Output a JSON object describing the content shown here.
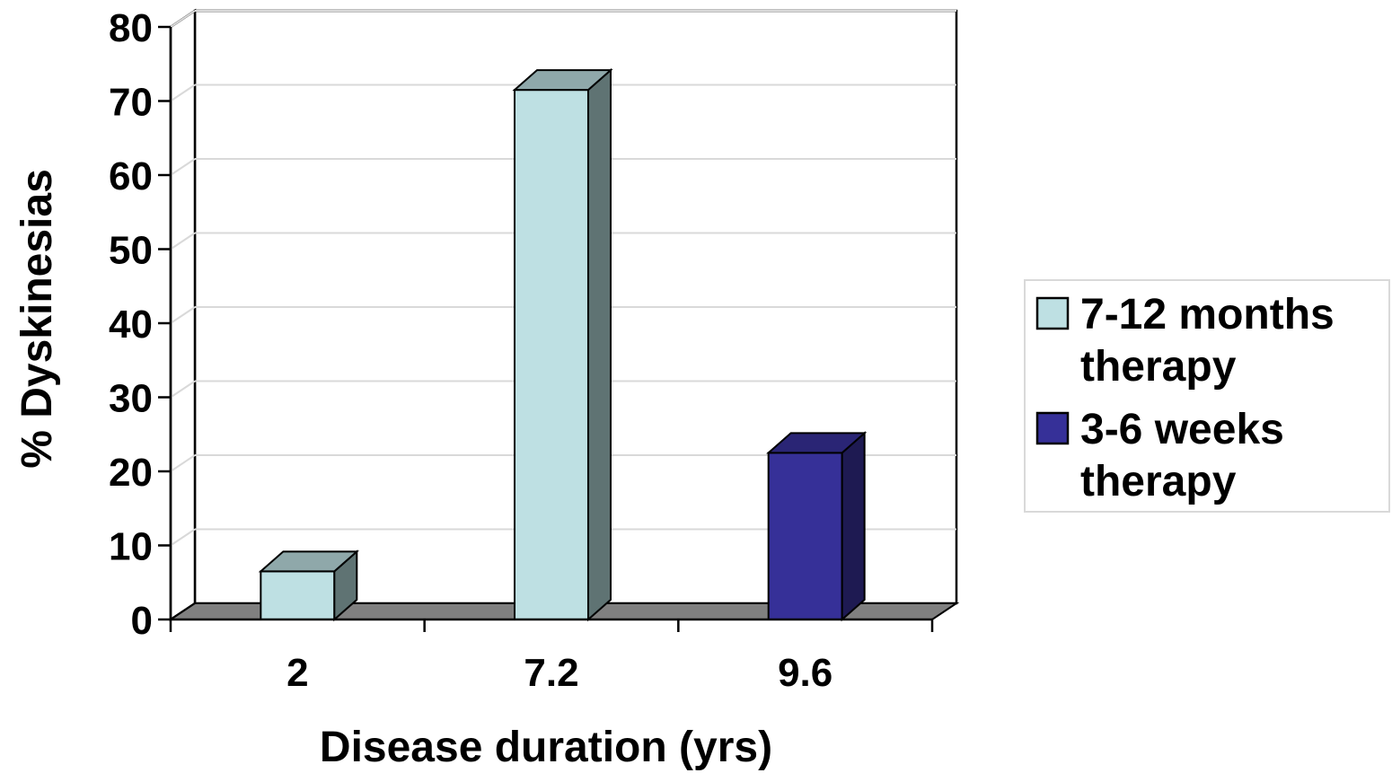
{
  "chart_data": {
    "type": "bar",
    "style": "3d-clustered-column",
    "categories": [
      "2",
      "7.2",
      "9.6"
    ],
    "series": [
      {
        "name": "7-12 months therapy",
        "legend_lines": [
          "7-12 months",
          "therapy"
        ],
        "values": [
          6.5,
          71.5,
          null
        ],
        "color": "#BEE0E3",
        "side_color": "#5F7373",
        "top_color": "#8FA8AA"
      },
      {
        "name": "3-6 weeks therapy",
        "legend_lines": [
          "3-6 weeks",
          "therapy"
        ],
        "values": [
          null,
          null,
          22.5
        ],
        "color": "#363098",
        "side_color": "#1E1A52",
        "top_color": "#2A2575"
      }
    ],
    "xlabel": "Disease duration (yrs)",
    "ylabel": "% Dyskinesias",
    "ylim": [
      0,
      80
    ],
    "yticks": [
      "0",
      "10",
      "20",
      "30",
      "40",
      "50",
      "60",
      "70",
      "80"
    ],
    "grid": true,
    "legend_position": "right"
  }
}
